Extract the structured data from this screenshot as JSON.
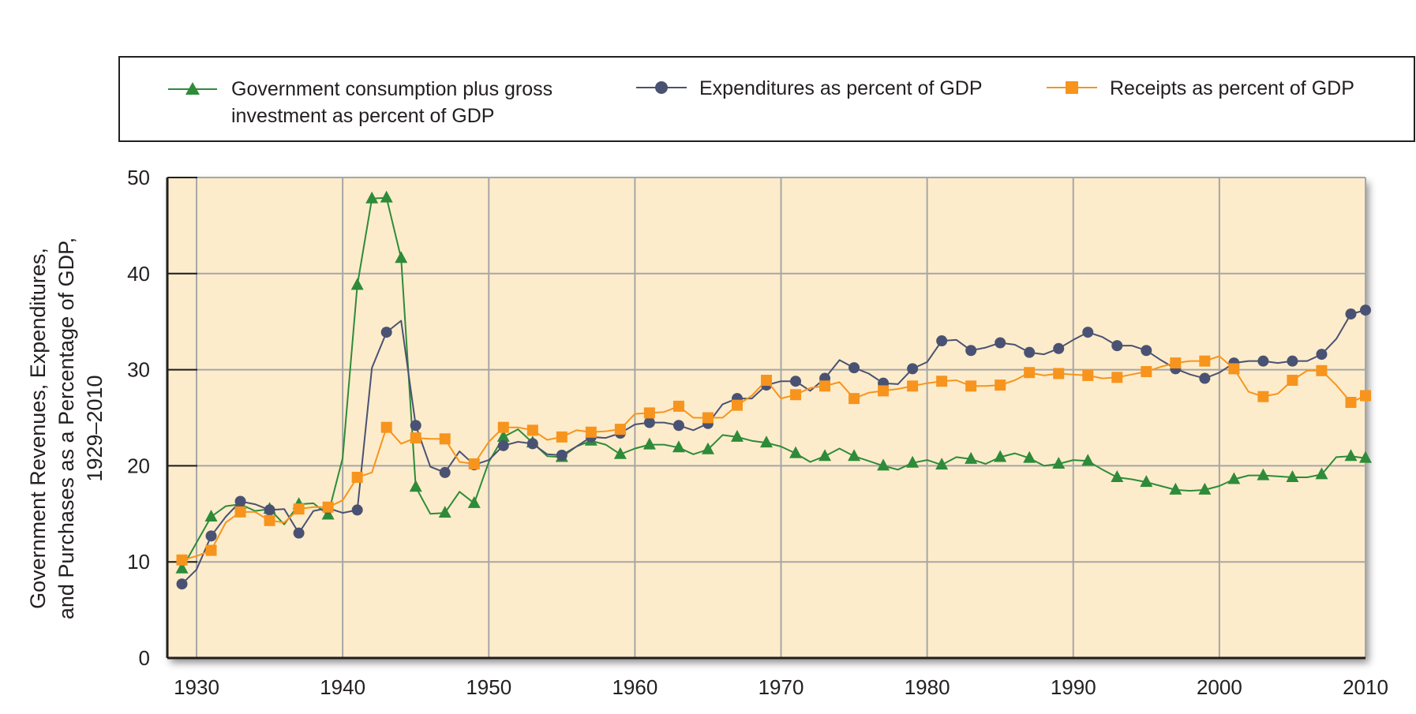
{
  "colors": {
    "plot_bg": "#fdeccb",
    "grid": "#a6a6a6",
    "axis": "#231f20",
    "text": "#231f20",
    "green": "#2e8b3a",
    "navy": "#4a5273",
    "orange": "#f7941d"
  },
  "chart_data": {
    "type": "line",
    "title": "",
    "xlabel": "",
    "ylabel_lines": [
      "Government Revenues, Expenditures,",
      "and Purchases as a Percentage of GDP,",
      "1929–2010"
    ],
    "xlim": [
      1928,
      2010
    ],
    "ylim": [
      0,
      50
    ],
    "x_ticks": [
      1930,
      1940,
      1950,
      1960,
      1970,
      1980,
      1990,
      2000,
      2010
    ],
    "y_ticks": [
      0,
      10,
      20,
      30,
      40,
      50
    ],
    "grid": true,
    "legend_position": "top",
    "series": [
      {
        "name_lines": [
          "Government consumption plus gross",
          "investment as percent of GDP"
        ],
        "color": "green",
        "marker": "triangle",
        "points": [
          [
            1929,
            9.3
          ],
          [
            1930,
            12.0
          ],
          [
            1931,
            14.7
          ],
          [
            1932,
            15.8
          ],
          [
            1933,
            16.0
          ],
          [
            1934,
            15.3
          ],
          [
            1935,
            15.5
          ],
          [
            1936,
            13.9
          ],
          [
            1937,
            16.0
          ],
          [
            1938,
            16.1
          ],
          [
            1939,
            14.9
          ],
          [
            1940,
            20.8
          ],
          [
            1941,
            38.8
          ],
          [
            1942,
            47.8
          ],
          [
            1943,
            47.9
          ],
          [
            1944,
            41.6
          ],
          [
            1945,
            17.8
          ],
          [
            1946,
            15.0
          ],
          [
            1947,
            15.1
          ],
          [
            1948,
            17.3
          ],
          [
            1949,
            16.1
          ],
          [
            1950,
            20.4
          ],
          [
            1951,
            23.0
          ],
          [
            1952,
            23.8
          ],
          [
            1953,
            22.4
          ],
          [
            1954,
            21.0
          ],
          [
            1955,
            20.9
          ],
          [
            1956,
            22.0
          ],
          [
            1957,
            22.6
          ],
          [
            1958,
            22.2
          ],
          [
            1959,
            21.2
          ],
          [
            1960,
            21.8
          ],
          [
            1961,
            22.2
          ],
          [
            1962,
            22.2
          ],
          [
            1963,
            21.9
          ],
          [
            1964,
            21.2
          ],
          [
            1965,
            21.7
          ],
          [
            1966,
            23.2
          ],
          [
            1967,
            23.0
          ],
          [
            1968,
            22.6
          ],
          [
            1969,
            22.4
          ],
          [
            1970,
            22.0
          ],
          [
            1971,
            21.3
          ],
          [
            1972,
            20.4
          ],
          [
            1973,
            21.0
          ],
          [
            1974,
            21.8
          ],
          [
            1975,
            21.0
          ],
          [
            1976,
            20.5
          ],
          [
            1977,
            20.0
          ],
          [
            1978,
            19.6
          ],
          [
            1979,
            20.3
          ],
          [
            1980,
            20.6
          ],
          [
            1981,
            20.1
          ],
          [
            1982,
            20.9
          ],
          [
            1983,
            20.7
          ],
          [
            1984,
            20.2
          ],
          [
            1985,
            20.9
          ],
          [
            1986,
            21.3
          ],
          [
            1987,
            20.8
          ],
          [
            1988,
            20.0
          ],
          [
            1989,
            20.2
          ],
          [
            1990,
            20.6
          ],
          [
            1991,
            20.5
          ],
          [
            1992,
            19.6
          ],
          [
            1993,
            18.8
          ],
          [
            1994,
            18.6
          ],
          [
            1995,
            18.3
          ],
          [
            1996,
            17.9
          ],
          [
            1997,
            17.5
          ],
          [
            1998,
            17.4
          ],
          [
            1999,
            17.5
          ],
          [
            2000,
            17.9
          ],
          [
            2001,
            18.6
          ],
          [
            2002,
            19.0
          ],
          [
            2003,
            19.0
          ],
          [
            2004,
            18.9
          ],
          [
            2005,
            18.8
          ],
          [
            2006,
            18.8
          ],
          [
            2007,
            19.1
          ],
          [
            2008,
            20.9
          ],
          [
            2009,
            21.0
          ],
          [
            2010,
            20.8
          ]
        ]
      },
      {
        "name_lines": [
          "Expenditures as percent of GDP"
        ],
        "color": "navy",
        "marker": "circle",
        "points": [
          [
            1929,
            7.7
          ],
          [
            1930,
            9.2
          ],
          [
            1931,
            12.7
          ],
          [
            1932,
            14.7
          ],
          [
            1933,
            16.3
          ],
          [
            1934,
            16.0
          ],
          [
            1935,
            15.4
          ],
          [
            1936,
            15.5
          ],
          [
            1937,
            13.0
          ],
          [
            1938,
            15.3
          ],
          [
            1939,
            15.6
          ],
          [
            1940,
            15.1
          ],
          [
            1941,
            15.4
          ],
          [
            1942,
            30.2
          ],
          [
            1943,
            33.9
          ],
          [
            1944,
            35.1
          ],
          [
            1945,
            24.2
          ],
          [
            1946,
            19.9
          ],
          [
            1947,
            19.3
          ],
          [
            1948,
            21.5
          ],
          [
            1949,
            20.1
          ],
          [
            1950,
            20.6
          ],
          [
            1951,
            22.1
          ],
          [
            1952,
            22.5
          ],
          [
            1953,
            22.3
          ],
          [
            1954,
            21.2
          ],
          [
            1955,
            21.1
          ],
          [
            1956,
            22.0
          ],
          [
            1957,
            23.0
          ],
          [
            1958,
            22.9
          ],
          [
            1959,
            23.4
          ],
          [
            1960,
            24.3
          ],
          [
            1961,
            24.5
          ],
          [
            1962,
            24.5
          ],
          [
            1963,
            24.2
          ],
          [
            1964,
            23.7
          ],
          [
            1965,
            24.4
          ],
          [
            1966,
            26.4
          ],
          [
            1967,
            27.0
          ],
          [
            1968,
            27.0
          ],
          [
            1969,
            28.4
          ],
          [
            1970,
            28.8
          ],
          [
            1971,
            28.8
          ],
          [
            1972,
            27.8
          ],
          [
            1973,
            29.1
          ],
          [
            1974,
            31.0
          ],
          [
            1975,
            30.2
          ],
          [
            1976,
            29.6
          ],
          [
            1977,
            28.6
          ],
          [
            1978,
            28.5
          ],
          [
            1979,
            30.1
          ],
          [
            1980,
            30.8
          ],
          [
            1981,
            33.0
          ],
          [
            1982,
            33.1
          ],
          [
            1983,
            32.0
          ],
          [
            1984,
            32.3
          ],
          [
            1985,
            32.8
          ],
          [
            1986,
            32.6
          ],
          [
            1987,
            31.8
          ],
          [
            1988,
            31.6
          ],
          [
            1989,
            32.2
          ],
          [
            1990,
            33.1
          ],
          [
            1991,
            33.9
          ],
          [
            1992,
            33.4
          ],
          [
            1993,
            32.5
          ],
          [
            1994,
            32.5
          ],
          [
            1995,
            32.0
          ],
          [
            1996,
            31.0
          ],
          [
            1997,
            30.1
          ],
          [
            1998,
            29.5
          ],
          [
            1999,
            29.1
          ],
          [
            2000,
            29.7
          ],
          [
            2001,
            30.7
          ],
          [
            2002,
            30.9
          ],
          [
            2003,
            30.9
          ],
          [
            2004,
            30.7
          ],
          [
            2005,
            30.9
          ],
          [
            2006,
            30.9
          ],
          [
            2007,
            31.6
          ],
          [
            2008,
            33.2
          ],
          [
            2009,
            35.8
          ],
          [
            2010,
            36.2
          ]
        ]
      },
      {
        "name_lines": [
          "Receipts as percent of GDP"
        ],
        "color": "orange",
        "marker": "square",
        "points": [
          [
            1929,
            10.2
          ],
          [
            1930,
            10.6
          ],
          [
            1931,
            11.2
          ],
          [
            1932,
            14.1
          ],
          [
            1933,
            15.2
          ],
          [
            1934,
            15.2
          ],
          [
            1935,
            14.3
          ],
          [
            1936,
            14.1
          ],
          [
            1937,
            15.5
          ],
          [
            1938,
            15.7
          ],
          [
            1939,
            15.7
          ],
          [
            1940,
            16.4
          ],
          [
            1941,
            18.8
          ],
          [
            1942,
            19.3
          ],
          [
            1943,
            24.0
          ],
          [
            1944,
            22.3
          ],
          [
            1945,
            22.9
          ],
          [
            1946,
            22.8
          ],
          [
            1947,
            22.8
          ],
          [
            1948,
            20.4
          ],
          [
            1949,
            20.2
          ],
          [
            1950,
            22.5
          ],
          [
            1951,
            24.0
          ],
          [
            1952,
            24.0
          ],
          [
            1953,
            23.7
          ],
          [
            1954,
            22.7
          ],
          [
            1955,
            23.0
          ],
          [
            1956,
            23.7
          ],
          [
            1957,
            23.5
          ],
          [
            1958,
            23.6
          ],
          [
            1959,
            23.8
          ],
          [
            1960,
            25.4
          ],
          [
            1961,
            25.5
          ],
          [
            1962,
            25.6
          ],
          [
            1963,
            26.2
          ],
          [
            1964,
            25.0
          ],
          [
            1965,
            25.0
          ],
          [
            1966,
            25.0
          ],
          [
            1967,
            26.3
          ],
          [
            1968,
            27.3
          ],
          [
            1969,
            28.9
          ],
          [
            1970,
            27.0
          ],
          [
            1971,
            27.4
          ],
          [
            1972,
            28.1
          ],
          [
            1973,
            28.3
          ],
          [
            1974,
            28.7
          ],
          [
            1975,
            27.0
          ],
          [
            1976,
            27.6
          ],
          [
            1977,
            27.8
          ],
          [
            1978,
            28.0
          ],
          [
            1979,
            28.3
          ],
          [
            1980,
            28.6
          ],
          [
            1981,
            28.8
          ],
          [
            1982,
            28.9
          ],
          [
            1983,
            28.3
          ],
          [
            1984,
            28.3
          ],
          [
            1985,
            28.4
          ],
          [
            1986,
            28.9
          ],
          [
            1987,
            29.7
          ],
          [
            1988,
            29.4
          ],
          [
            1989,
            29.6
          ],
          [
            1990,
            29.5
          ],
          [
            1991,
            29.4
          ],
          [
            1992,
            29.1
          ],
          [
            1993,
            29.2
          ],
          [
            1994,
            29.5
          ],
          [
            1995,
            29.8
          ],
          [
            1996,
            30.3
          ],
          [
            1997,
            30.7
          ],
          [
            1998,
            30.9
          ],
          [
            1999,
            30.9
          ],
          [
            2000,
            31.4
          ],
          [
            2001,
            30.1
          ],
          [
            2002,
            27.7
          ],
          [
            2003,
            27.2
          ],
          [
            2004,
            27.5
          ],
          [
            2005,
            28.9
          ],
          [
            2006,
            29.9
          ],
          [
            2007,
            29.9
          ],
          [
            2008,
            28.4
          ],
          [
            2009,
            26.6
          ],
          [
            2010,
            27.3
          ]
        ]
      }
    ]
  }
}
